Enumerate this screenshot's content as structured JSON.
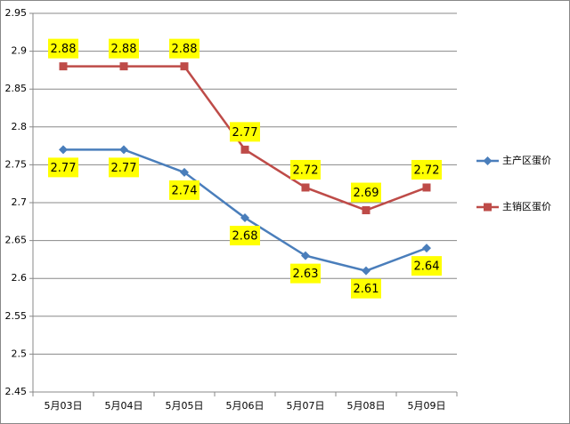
{
  "chart_data": {
    "type": "line",
    "categories": [
      "5月03日",
      "5月04日",
      "5月05日",
      "5月06日",
      "5月07日",
      "5月08日",
      "5月09日"
    ],
    "series": [
      {
        "name": "主产区蛋价",
        "color": "#4a7ebb",
        "marker": "diamond",
        "label_position": "below",
        "values": [
          2.77,
          2.77,
          2.74,
          2.68,
          2.63,
          2.61,
          2.64
        ]
      },
      {
        "name": "主销区蛋价",
        "color": "#be4b48",
        "marker": "square",
        "label_position": "above",
        "values": [
          2.88,
          2.88,
          2.88,
          2.77,
          2.72,
          2.69,
          2.72
        ]
      }
    ],
    "ylim": [
      2.45,
      2.95
    ],
    "yticks": [
      2.45,
      2.5,
      2.55,
      2.6,
      2.65,
      2.7,
      2.75,
      2.8,
      2.85,
      2.9,
      2.95
    ],
    "grid": true,
    "legend": "right"
  }
}
